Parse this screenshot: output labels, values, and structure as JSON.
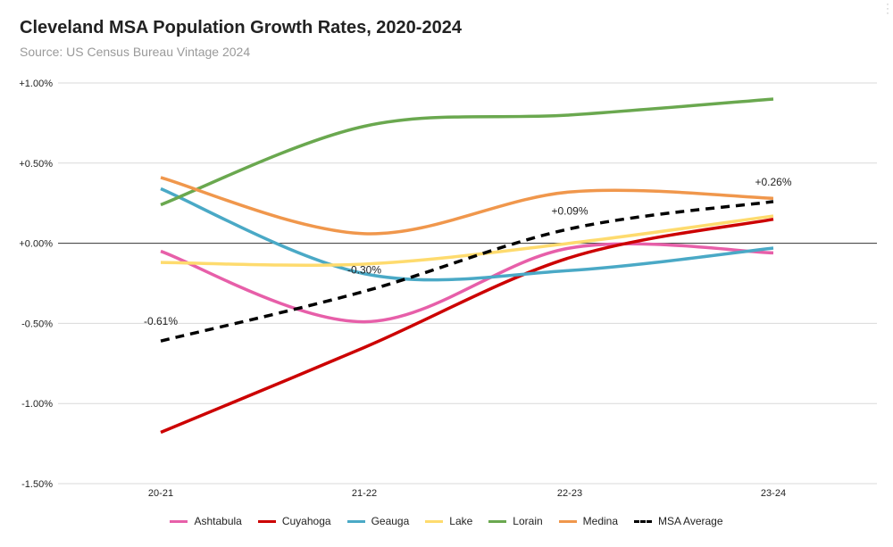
{
  "chart_data": {
    "type": "line",
    "title": "Cleveland MSA Population Growth Rates, 2020-2024",
    "subtitle": "Source: US Census Bureau Vintage 2024",
    "categories": [
      "20-21",
      "21-22",
      "22-23",
      "23-24"
    ],
    "y_ticks": [
      "+1.00%",
      "+0.50%",
      "+0.00%",
      "-0.50%",
      "-1.00%",
      "-1.50%"
    ],
    "y_tick_values": [
      1.0,
      0.5,
      0.0,
      -0.5,
      -1.0,
      -1.5
    ],
    "ylim": [
      -1.5,
      1.0
    ],
    "unit": "%",
    "grid": true,
    "legend_position": "bottom",
    "series": [
      {
        "name": "Ashtabula",
        "color": "#e75fa9",
        "values": [
          -0.05,
          -0.49,
          -0.03,
          -0.06
        ],
        "dashed": false
      },
      {
        "name": "Cuyahoga",
        "color": "#cc0000",
        "values": [
          -1.18,
          -0.65,
          -0.09,
          0.15
        ],
        "dashed": false
      },
      {
        "name": "Geauga",
        "color": "#4aa9c6",
        "values": [
          0.34,
          -0.19,
          -0.17,
          -0.03
        ],
        "dashed": false
      },
      {
        "name": "Lake",
        "color": "#fedb6e",
        "values": [
          -0.12,
          -0.13,
          0.0,
          0.17
        ],
        "dashed": false
      },
      {
        "name": "Lorain",
        "color": "#6aa84f",
        "values": [
          0.24,
          0.73,
          0.8,
          0.9
        ],
        "dashed": false
      },
      {
        "name": "Medina",
        "color": "#f0974c",
        "values": [
          0.41,
          0.06,
          0.32,
          0.28
        ],
        "dashed": false
      },
      {
        "name": "MSA Average",
        "color": "#000000",
        "values": [
          -0.61,
          -0.3,
          0.09,
          0.26
        ],
        "dashed": true
      }
    ],
    "annotations": [
      {
        "series": "MSA Average",
        "index": 0,
        "text": "-0.61%"
      },
      {
        "series": "MSA Average",
        "index": 1,
        "text": "-0.30%"
      },
      {
        "series": "MSA Average",
        "index": 2,
        "text": "+0.09%"
      },
      {
        "series": "MSA Average",
        "index": 3,
        "text": "+0.26%"
      }
    ]
  }
}
